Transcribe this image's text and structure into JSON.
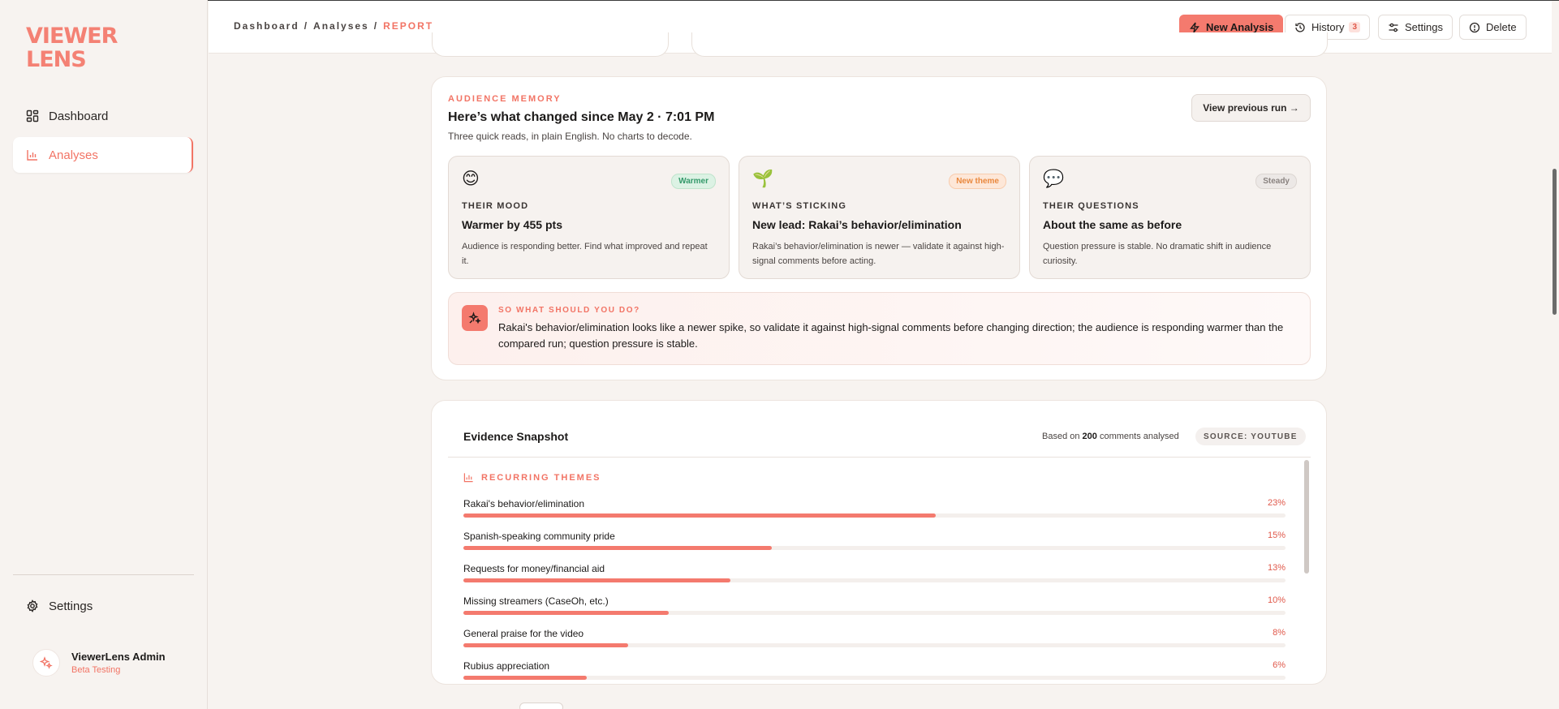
{
  "brand": {
    "logo_line1": "VIEWER",
    "logo_line2": "LENS",
    "accent": "#f27465"
  },
  "sidebar": {
    "items": [
      {
        "label": "Dashboard",
        "icon": "dashboard-icon"
      },
      {
        "label": "Analyses",
        "icon": "bar-chart-icon",
        "active": true
      }
    ],
    "settings_label": "Settings",
    "user": {
      "name": "ViewerLens Admin",
      "role": "Beta Testing"
    }
  },
  "header": {
    "breadcrumb": [
      "Dashboard",
      "Analyses",
      "REPORT"
    ],
    "new_analysis_label": "New Analysis",
    "history_label": "History",
    "history_count": "3",
    "settings_label": "Settings",
    "delete_label": "Delete"
  },
  "audience_memory": {
    "eyebrow": "AUDIENCE MEMORY",
    "title": "Here’s what changed since May 2 · 7:01 PM",
    "subtitle": "Three quick reads, in plain English. No charts to decode.",
    "view_previous_label": "View previous run →",
    "tiles": [
      {
        "emoji": "😊",
        "badge": "Warmer",
        "label": "THEIR MOOD",
        "headline": "Warmer by 455 pts",
        "body": "Audience is responding better. Find what improved and repeat it."
      },
      {
        "emoji": "🌱",
        "badge": "New theme",
        "label": "WHAT’S STICKING",
        "headline": "New lead: Rakai’s behavior/elimination",
        "body": "Rakai’s behavior/elimination is newer — validate it against high-signal comments before acting."
      },
      {
        "emoji": "💬",
        "badge": "Steady",
        "label": "THEIR QUESTIONS",
        "headline": "About the same as before",
        "body": "Question pressure is stable. No dramatic shift in audience curiosity."
      }
    ],
    "so_what": {
      "eyebrow": "SO WHAT SHOULD YOU DO?",
      "text": "Rakai's behavior/elimination looks like a newer spike, so validate it against high-signal comments before changing direction; the audience is responding warmer than the compared run; question pressure is stable."
    }
  },
  "evidence": {
    "title": "Evidence Snapshot",
    "based_prefix": "Based on",
    "comment_count": "200",
    "based_suffix": "comments analysed",
    "source_label": "SOURCE: YOUTUBE",
    "themes_heading": "RECURRING THEMES",
    "themes": [
      {
        "name": "Rakai's behavior/elimination",
        "pct_label": "23%",
        "fill": 0.575
      },
      {
        "name": "Spanish-speaking community pride",
        "pct_label": "15%",
        "fill": 0.375
      },
      {
        "name": "Requests for money/financial aid",
        "pct_label": "13%",
        "fill": 0.325
      },
      {
        "name": "Missing streamers (CaseOh, etc.)",
        "pct_label": "10%",
        "fill": 0.25
      },
      {
        "name": "General praise for the video",
        "pct_label": "8%",
        "fill": 0.2
      },
      {
        "name": "Rubius appreciation",
        "pct_label": "6%",
        "fill": 0.15
      }
    ]
  }
}
